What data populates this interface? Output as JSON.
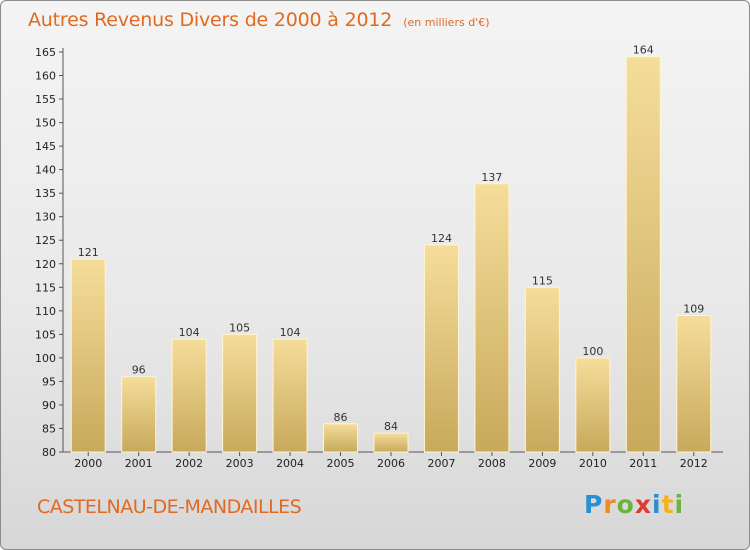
{
  "title": "Autres Revenus Divers de 2000 à 2012",
  "unit": "(en milliers d'€)",
  "commune": "CASTELNAU-DE-MANDAILLES",
  "logo": {
    "letters": [
      "P",
      "r",
      "o",
      "x",
      "i",
      "t",
      "i"
    ],
    "colors": [
      "#2a8fd0",
      "#f08a24",
      "#6cb33e",
      "#e03a2f",
      "#2a8fd0",
      "#f5b21f",
      "#6cb33e"
    ]
  },
  "colors": {
    "accent": "#e06a21",
    "bar_light": "#f5dd9a",
    "bar_dark": "#c8a95c"
  },
  "chart_data": {
    "type": "bar",
    "categories": [
      "2000",
      "2001",
      "2002",
      "2003",
      "2004",
      "2005",
      "2006",
      "2007",
      "2008",
      "2009",
      "2010",
      "2011",
      "2012"
    ],
    "values": [
      121,
      96,
      104,
      105,
      104,
      86,
      84,
      124,
      137,
      115,
      100,
      164,
      109
    ],
    "ylim": [
      80,
      165
    ],
    "yticks": [
      80,
      85,
      90,
      95,
      100,
      105,
      110,
      115,
      120,
      125,
      130,
      135,
      140,
      145,
      150,
      155,
      160,
      165
    ],
    "grid": false,
    "show_value_labels": true
  }
}
